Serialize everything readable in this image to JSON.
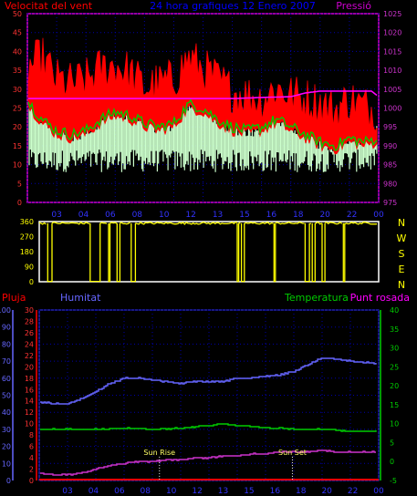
{
  "chart_data": [
    {
      "type": "line",
      "title": "24 hora grafiques  12 Enero 2007",
      "left_axis_label": "Velocitat del vent",
      "right_axis_label": "Pressió",
      "left_axis": {
        "ylim": [
          0,
          50
        ],
        "ticks": [
          0,
          5,
          10,
          15,
          20,
          25,
          30,
          35,
          40,
          45,
          50
        ]
      },
      "right_axis": {
        "ylim": [
          975,
          1025
        ],
        "ticks": [
          975,
          980,
          985,
          990,
          995,
          1000,
          1005,
          1010,
          1015,
          1020,
          1025
        ]
      },
      "x_ticks": [
        "03",
        "04",
        "06",
        "08",
        "10",
        "12",
        "13",
        "15",
        "16",
        "18",
        "20",
        "22",
        "00"
      ],
      "colors": {
        "gust": "#ff0000",
        "average": "#00cc00",
        "pressure": "#ff00ff",
        "fill": "#ccffcc",
        "frame": "#cc00cc",
        "grid": "#0000aa"
      },
      "series": [
        {
          "role": "gust",
          "axis": "left",
          "x": [
            0,
            1,
            2,
            3,
            4,
            5,
            6,
            7,
            8,
            9,
            10,
            11,
            12,
            13,
            14,
            15,
            16,
            17,
            18,
            19,
            20,
            21,
            22,
            23,
            24
          ],
          "values": [
            33,
            36,
            30,
            29,
            30,
            33,
            34,
            32,
            28,
            29,
            30,
            36,
            33,
            30,
            27,
            26,
            25,
            28,
            26,
            25,
            24,
            22,
            25,
            23,
            22
          ]
        },
        {
          "role": "average",
          "axis": "left",
          "x": [
            0,
            1,
            2,
            3,
            4,
            5,
            6,
            7,
            8,
            9,
            10,
            11,
            12,
            13,
            14,
            15,
            16,
            17,
            18,
            19,
            20,
            21,
            22,
            23,
            24
          ],
          "values": [
            27,
            22,
            19,
            18,
            19,
            22,
            24,
            23,
            21,
            20,
            21,
            26,
            25,
            22,
            20,
            19,
            20,
            22,
            20,
            18,
            16,
            15,
            17,
            16,
            17
          ]
        },
        {
          "role": "pressure",
          "axis": "right",
          "x": [
            0,
            2,
            4,
            6,
            8,
            10,
            12,
            14,
            16,
            18,
            19,
            20,
            22,
            23.5,
            24
          ],
          "values": [
            1002.5,
            1002.5,
            1002.5,
            1002.5,
            1002.5,
            1002.5,
            1002.5,
            1002.5,
            1002.8,
            1003,
            1004,
            1004.5,
            1004.5,
            1004.5,
            1003
          ]
        }
      ]
    },
    {
      "type": "line",
      "left_axis": {
        "ylim": [
          0,
          360
        ],
        "ticks": [
          0,
          90,
          180,
          270,
          360
        ]
      },
      "right_labels": [
        "N",
        "W",
        "S",
        "E",
        "N"
      ],
      "x_ticks": [
        "03",
        "04",
        "06",
        "08",
        "10",
        "12",
        "13",
        "15",
        "16",
        "18",
        "20",
        "22",
        "00"
      ],
      "colors": {
        "line": "#ffff00",
        "frame": "#ffffff"
      },
      "series": [
        {
          "role": "direction",
          "baseline": 350,
          "dips": [
            [
              0.6,
              0.9
            ],
            [
              3.6,
              4.3
            ],
            [
              4.9,
              5.0
            ],
            [
              5.5,
              5.7
            ],
            [
              6.5,
              6.8
            ],
            [
              14.0,
              14.1
            ],
            [
              14.3,
              14.5
            ],
            [
              16.6,
              16.7
            ],
            [
              18.8,
              19.1
            ],
            [
              19.3,
              19.5
            ],
            [
              20.0,
              20.2
            ],
            [
              21.5,
              21.6
            ]
          ]
        }
      ]
    },
    {
      "type": "line",
      "axis_labels": {
        "rain": "Pluja",
        "humidity": "Humitat",
        "temperature": "Temperatura",
        "dew_point": "Punt rosada"
      },
      "humidity_axis": {
        "ylim": [
          0,
          100
        ],
        "ticks": [
          0,
          10,
          20,
          30,
          40,
          50,
          60,
          70,
          80,
          90,
          100
        ]
      },
      "rain_axis": {
        "ylim": [
          0,
          30
        ],
        "ticks": [
          0,
          2,
          4,
          6,
          8,
          10,
          12,
          14,
          16,
          18,
          20,
          22,
          24,
          26,
          28,
          30
        ]
      },
      "temperature_axis": {
        "ylim": [
          -5,
          40
        ],
        "ticks": [
          -5,
          0,
          5,
          10,
          15,
          20,
          25,
          30,
          35,
          40
        ]
      },
      "x_ticks": [
        "03",
        "04",
        "06",
        "08",
        "10",
        "12",
        "13",
        "15",
        "16",
        "18",
        "20",
        "22",
        "00"
      ],
      "annotations": [
        {
          "text": "Sun Rise",
          "x": 8.5
        },
        {
          "text": "Sun Set",
          "x": 17.9
        }
      ],
      "colors": {
        "humidity": "#6666ff",
        "temperature": "#00cc00",
        "dew_point": "#cc33cc",
        "rain": "#ff0000",
        "grid": "#0000aa"
      },
      "series": [
        {
          "role": "humidity",
          "axis": "humidity",
          "x": [
            0,
            1,
            2,
            3,
            4,
            5,
            6,
            7,
            8,
            9,
            10,
            11,
            12,
            13,
            14,
            15,
            16,
            17,
            18,
            19,
            20,
            21,
            22,
            23,
            24
          ],
          "values": [
            46,
            45,
            45,
            48,
            52,
            57,
            60,
            60,
            59,
            58,
            57,
            58,
            58,
            58,
            60,
            60,
            61,
            62,
            64,
            68,
            72,
            71,
            70,
            69,
            69
          ]
        },
        {
          "role": "temperature",
          "axis": "temperature",
          "x": [
            0,
            2,
            4,
            6,
            8,
            10,
            12,
            13,
            14,
            16,
            18,
            20,
            22,
            24
          ],
          "values": [
            8.5,
            8.5,
            8.5,
            8.8,
            8.5,
            8.8,
            9.5,
            10,
            9.5,
            9,
            8.5,
            8.5,
            8,
            8
          ]
        },
        {
          "role": "dew_point",
          "axis": "temperature",
          "x": [
            0,
            1,
            2,
            3,
            4,
            5,
            6,
            7,
            8,
            9,
            10,
            11,
            12,
            13,
            14,
            15,
            16,
            17,
            18,
            19,
            20,
            21,
            22,
            23,
            24
          ],
          "values": [
            -3,
            -3.5,
            -3.5,
            -3,
            -2,
            -1,
            -0.5,
            0,
            0,
            0.5,
            0.5,
            1,
            1,
            1.5,
            1.5,
            2,
            2,
            2.5,
            2.5,
            2.5,
            3,
            2.5,
            2.5,
            2.5,
            2.5
          ]
        },
        {
          "role": "rain",
          "axis": "rain",
          "x": [
            0,
            24
          ],
          "values": [
            0,
            0
          ]
        }
      ]
    }
  ]
}
